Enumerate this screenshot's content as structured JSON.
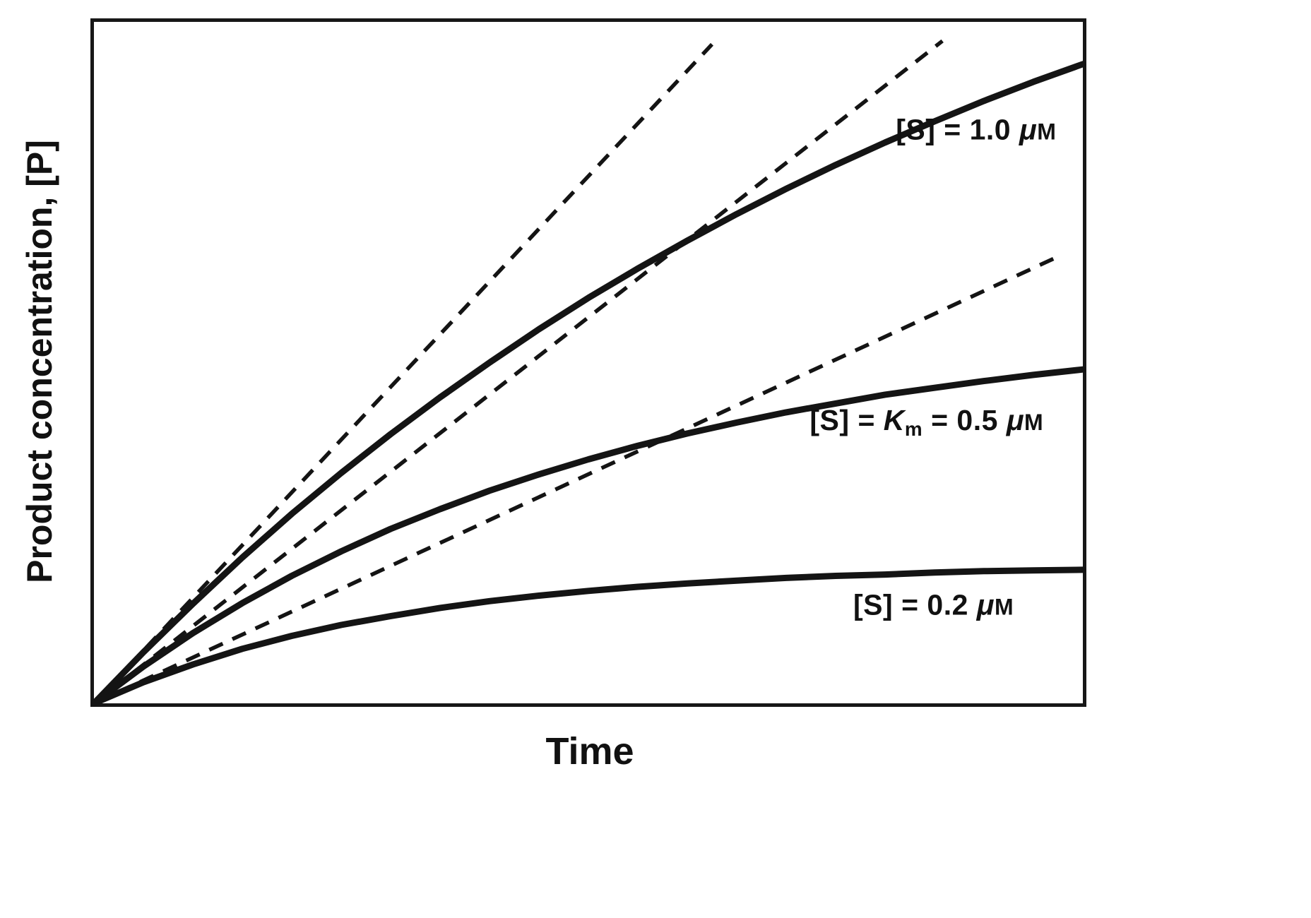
{
  "page": {
    "background": "#ffffff",
    "line_color": "#141414"
  },
  "chart_data": {
    "type": "line",
    "title": "",
    "xlabel": "Time",
    "ylabel": "Product concentration, [P]",
    "axes": {
      "x_ticks": [],
      "y_ticks": [],
      "grid": false,
      "legend": "inline labels on curves",
      "note": "qualitative axes; coordinates normalized 0-1 of plot box, y measured up from origin"
    },
    "x": [
      0,
      0.05,
      0.1,
      0.15,
      0.2,
      0.25,
      0.3,
      0.35,
      0.4,
      0.45,
      0.5,
      0.55,
      0.6,
      0.65,
      0.7,
      0.75,
      0.8,
      0.85,
      0.9,
      0.95,
      1.0
    ],
    "series": [
      {
        "name": "progress-curve-S-1.0uM",
        "label": "[S] = 1.0 μM",
        "style": "solid",
        "y": [
          0,
          0.075,
          0.146,
          0.214,
          0.278,
          0.338,
          0.395,
          0.449,
          0.5,
          0.549,
          0.595,
          0.638,
          0.679,
          0.718,
          0.755,
          0.79,
          0.823,
          0.854,
          0.884,
          0.912,
          0.938
        ]
      },
      {
        "name": "progress-curve-S-0.5uM",
        "label": "[S] = Km = 0.5 μM",
        "style": "solid",
        "y": [
          0,
          0.054,
          0.103,
          0.147,
          0.187,
          0.223,
          0.256,
          0.285,
          0.312,
          0.336,
          0.358,
          0.378,
          0.396,
          0.412,
          0.427,
          0.44,
          0.453,
          0.463,
          0.473,
          0.482,
          0.49
        ]
      },
      {
        "name": "progress-curve-S-0.2uM",
        "label": "[S] = 0.2 μM",
        "style": "solid",
        "y": [
          0,
          0.031,
          0.057,
          0.08,
          0.099,
          0.115,
          0.128,
          0.14,
          0.15,
          0.158,
          0.165,
          0.171,
          0.176,
          0.18,
          0.184,
          0.187,
          0.189,
          0.192,
          0.194,
          0.195,
          0.196
        ]
      }
    ],
    "tangents": [
      {
        "name": "initial-rate-tangent-S-1.0uM",
        "style": "dashed",
        "slope_normalized": 1.55,
        "x": [
          0,
          0.625
        ],
        "y": [
          0,
          0.967
        ]
      },
      {
        "name": "initial-rate-tangent-S-0.5uM",
        "style": "dashed",
        "slope_normalized": 1.13,
        "x": [
          0,
          0.858
        ],
        "y": [
          0,
          0.972
        ]
      },
      {
        "name": "initial-rate-tangent-S-0.2uM",
        "style": "dashed",
        "slope_normalized": 0.67,
        "x": [
          0,
          0.977
        ],
        "y": [
          0,
          0.657
        ]
      }
    ],
    "labels": [
      {
        "name": "label-S-1.0uM",
        "text": "[S] = 1.0 μM",
        "x": 0.892,
        "y": 0.841,
        "segments": [
          {
            "t": "[S] = 1.0 ",
            "s": "b"
          },
          {
            "t": "μ",
            "s": "bi"
          },
          {
            "t": "M",
            "s": "sc"
          }
        ]
      },
      {
        "name": "label-S-0.5uM",
        "text": "[S] = Km = 0.5 μM",
        "x": 0.842,
        "y": 0.412,
        "segments": [
          {
            "t": "[S] = ",
            "s": "b"
          },
          {
            "t": "K",
            "s": "bi"
          },
          {
            "t": "m",
            "s": "sub"
          },
          {
            "t": " = 0.5 ",
            "s": "b"
          },
          {
            "t": "μ",
            "s": "bi"
          },
          {
            "t": "M",
            "s": "sc"
          }
        ]
      },
      {
        "name": "label-S-0.2uM",
        "text": "[S] = 0.2 μM",
        "x": 0.849,
        "y": 0.144,
        "segments": [
          {
            "t": "[S] = 0.2 ",
            "s": "b"
          },
          {
            "t": "μ",
            "s": "bi"
          },
          {
            "t": "M",
            "s": "sc"
          }
        ]
      }
    ]
  }
}
